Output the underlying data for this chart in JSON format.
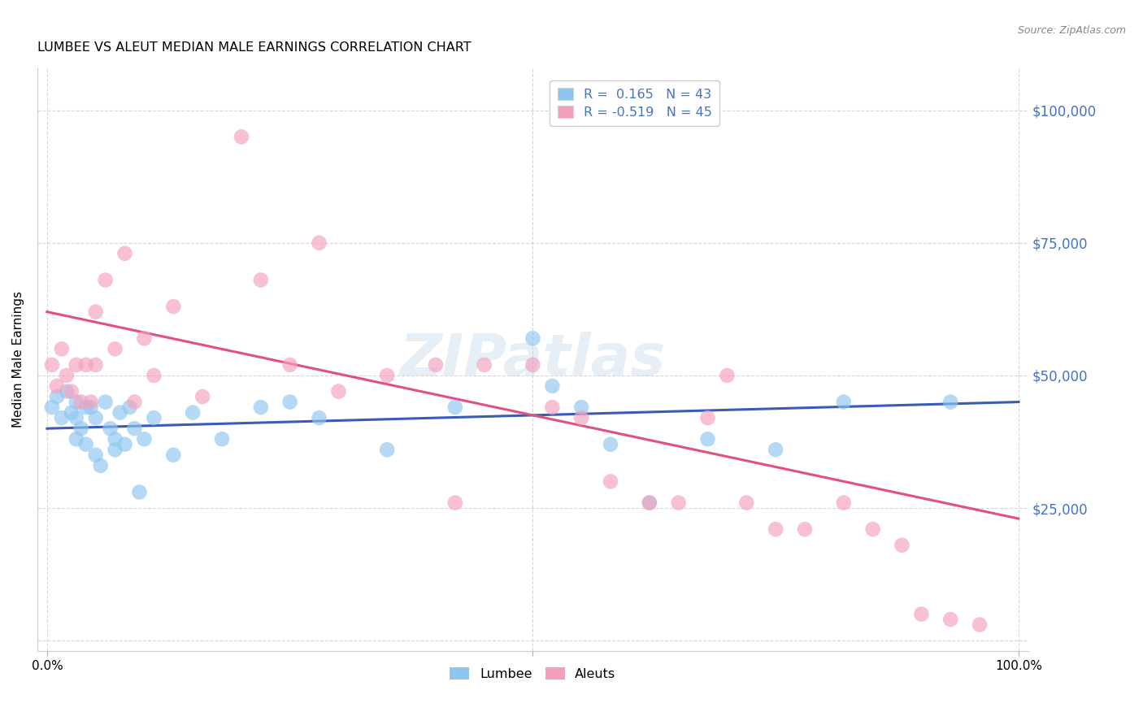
{
  "title": "LUMBEE VS ALEUT MEDIAN MALE EARNINGS CORRELATION CHART",
  "source": "Source: ZipAtlas.com",
  "ylabel": "Median Male Earnings",
  "yticks": [
    0,
    25000,
    50000,
    75000,
    100000
  ],
  "ytick_labels": [
    "",
    "$25,000",
    "$50,000",
    "$75,000",
    "$100,000"
  ],
  "xlim": [
    -0.01,
    1.01
  ],
  "ylim": [
    -2000,
    108000
  ],
  "lumbee_color": "#8ec6f0",
  "aleut_color": "#f4a0bc",
  "lumbee_line_color": "#3a5cb8",
  "aleut_line_color": "#e05080",
  "legend_text_color": "#4472c4",
  "lumbee_R": 0.165,
  "lumbee_N": 43,
  "aleut_R": -0.519,
  "aleut_N": 45,
  "watermark": "ZIPatlas",
  "lumbee_x": [
    0.005,
    0.01,
    0.015,
    0.02,
    0.025,
    0.03,
    0.03,
    0.03,
    0.035,
    0.04,
    0.04,
    0.045,
    0.05,
    0.05,
    0.055,
    0.06,
    0.065,
    0.07,
    0.07,
    0.075,
    0.08,
    0.085,
    0.09,
    0.095,
    0.1,
    0.11,
    0.13,
    0.15,
    0.18,
    0.22,
    0.25,
    0.28,
    0.35,
    0.42,
    0.5,
    0.52,
    0.55,
    0.58,
    0.62,
    0.68,
    0.75,
    0.82,
    0.93
  ],
  "lumbee_y": [
    44000,
    46000,
    42000,
    47000,
    43000,
    38000,
    45000,
    42000,
    40000,
    44000,
    37000,
    44000,
    35000,
    42000,
    33000,
    45000,
    40000,
    38000,
    36000,
    43000,
    37000,
    44000,
    40000,
    28000,
    38000,
    42000,
    35000,
    43000,
    38000,
    44000,
    45000,
    42000,
    36000,
    44000,
    57000,
    48000,
    44000,
    37000,
    26000,
    38000,
    36000,
    45000,
    45000
  ],
  "aleut_x": [
    0.005,
    0.01,
    0.015,
    0.02,
    0.025,
    0.03,
    0.035,
    0.04,
    0.045,
    0.05,
    0.05,
    0.06,
    0.07,
    0.08,
    0.09,
    0.1,
    0.11,
    0.13,
    0.16,
    0.2,
    0.22,
    0.25,
    0.28,
    0.3,
    0.35,
    0.4,
    0.42,
    0.45,
    0.5,
    0.52,
    0.55,
    0.58,
    0.62,
    0.65,
    0.68,
    0.7,
    0.72,
    0.75,
    0.78,
    0.82,
    0.85,
    0.88,
    0.9,
    0.93,
    0.96
  ],
  "aleut_y": [
    52000,
    48000,
    55000,
    50000,
    47000,
    52000,
    45000,
    52000,
    45000,
    62000,
    52000,
    68000,
    55000,
    73000,
    45000,
    57000,
    50000,
    63000,
    46000,
    95000,
    68000,
    52000,
    75000,
    47000,
    50000,
    52000,
    26000,
    52000,
    52000,
    44000,
    42000,
    30000,
    26000,
    26000,
    42000,
    50000,
    26000,
    21000,
    21000,
    26000,
    21000,
    18000,
    5000,
    4000,
    3000
  ]
}
